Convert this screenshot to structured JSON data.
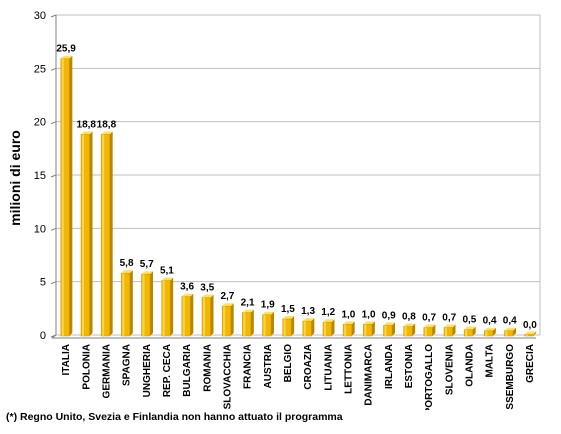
{
  "footnote": "(*) Regno Unito, Svezia  e Finlandia non hanno attuato il programma",
  "chart_data": {
    "type": "bar",
    "title": "",
    "xlabel": "",
    "ylabel": "milioni di euro",
    "ylim": [
      0,
      30
    ],
    "yticks": [
      0,
      5,
      10,
      15,
      20,
      25,
      30
    ],
    "grid": true,
    "legend": "none",
    "categories": [
      "ITALIA",
      "POLONIA",
      "GERMANIA",
      "SPAGNA",
      "UNGHERIA",
      "REP. CECA",
      "BULGARIA",
      "ROMANIA",
      "SLOVACCHIA",
      "FRANCIA",
      "AUSTRIA",
      "BELGIO",
      "CROAZIA",
      "LITUANIA",
      "LETTONIA",
      "DANIMARCA",
      "IRLANDA",
      "ESTONIA",
      "PORTOGALLO",
      "SLOVENIA",
      "OLANDA",
      "MALTA",
      "LUSSEMBURGO",
      "GRECIA"
    ],
    "values": [
      25.9,
      18.8,
      18.8,
      5.8,
      5.7,
      5.1,
      3.6,
      3.5,
      2.7,
      2.1,
      1.9,
      1.5,
      1.3,
      1.2,
      1.0,
      1.0,
      0.9,
      0.8,
      0.7,
      0.7,
      0.5,
      0.4,
      0.4,
      0.0
    ],
    "value_labels": [
      "25,9",
      "18,8",
      "18,8",
      "5,8",
      "5,7",
      "5,1",
      "3,6",
      "3,5",
      "2,7",
      "2,1",
      "1,9",
      "1,5",
      "1,3",
      "1,2",
      "1,0",
      "1,0",
      "0,9",
      "0,8",
      "0,7",
      "0,7",
      "0,5",
      "0,4",
      "0,4",
      "0,0"
    ],
    "colors": {
      "bar": "#F2B705",
      "bar_light": "#FFE066",
      "bar_dark": "#B88600",
      "grid": "#BFBFBF",
      "axis": "#808080"
    }
  }
}
